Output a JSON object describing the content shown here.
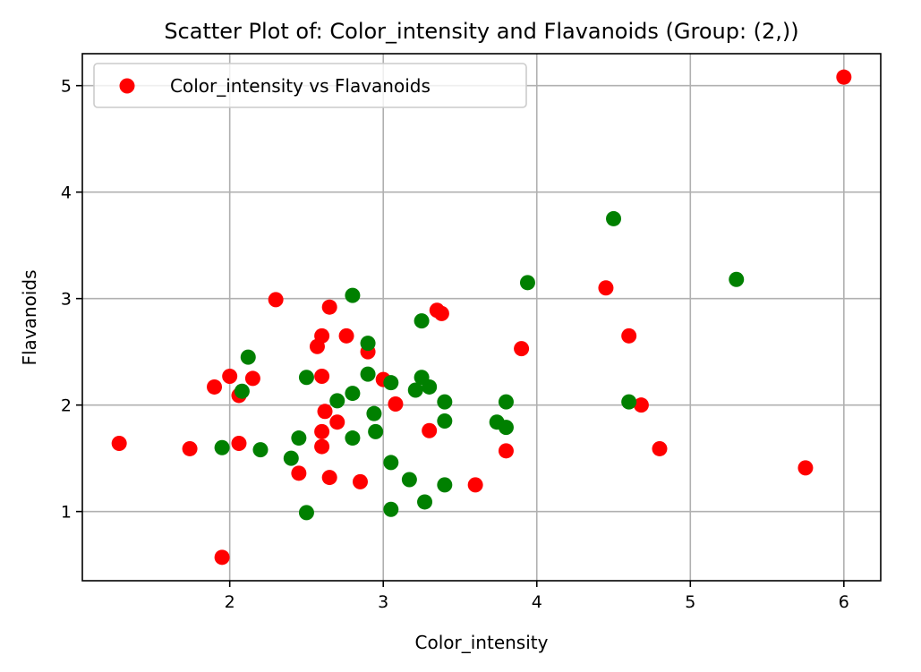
{
  "chart_data": {
    "type": "scatter",
    "title": "Scatter Plot of: Color_intensity and Flavanoids (Group: (2,))",
    "xlabel": "Color_intensity",
    "ylabel": "Flavanoids",
    "xlim": [
      1.04,
      6.24
    ],
    "ylim": [
      0.35,
      5.3
    ],
    "xticks": [
      2,
      3,
      4,
      5,
      6
    ],
    "yticks": [
      1,
      2,
      3,
      4,
      5
    ],
    "grid": true,
    "legend": {
      "position": "upper-left",
      "entries": [
        {
          "label": "Color_intensity vs Flavanoids",
          "color": "#ff0000"
        }
      ]
    },
    "colors": {
      "red": "#ff0000",
      "green": "#008000"
    },
    "series": [
      {
        "color": "#ff0000",
        "points": [
          {
            "x": 1.28,
            "y": 1.64
          },
          {
            "x": 1.74,
            "y": 1.59
          },
          {
            "x": 1.9,
            "y": 2.17
          },
          {
            "x": 1.95,
            "y": 0.57
          },
          {
            "x": 2.0,
            "y": 2.27
          },
          {
            "x": 2.06,
            "y": 2.09
          },
          {
            "x": 2.06,
            "y": 1.64
          },
          {
            "x": 2.15,
            "y": 2.25
          },
          {
            "x": 2.3,
            "y": 2.99
          },
          {
            "x": 2.45,
            "y": 1.36
          },
          {
            "x": 2.57,
            "y": 2.55
          },
          {
            "x": 2.6,
            "y": 2.65
          },
          {
            "x": 2.6,
            "y": 2.27
          },
          {
            "x": 2.6,
            "y": 1.75
          },
          {
            "x": 2.6,
            "y": 1.61
          },
          {
            "x": 2.62,
            "y": 1.94
          },
          {
            "x": 2.65,
            "y": 2.92
          },
          {
            "x": 2.65,
            "y": 1.32
          },
          {
            "x": 2.7,
            "y": 1.84
          },
          {
            "x": 2.76,
            "y": 2.65
          },
          {
            "x": 2.85,
            "y": 1.28
          },
          {
            "x": 2.9,
            "y": 2.5
          },
          {
            "x": 3.0,
            "y": 2.24
          },
          {
            "x": 3.08,
            "y": 2.01
          },
          {
            "x": 3.3,
            "y": 1.76
          },
          {
            "x": 3.35,
            "y": 2.89
          },
          {
            "x": 3.38,
            "y": 2.86
          },
          {
            "x": 3.6,
            "y": 1.25
          },
          {
            "x": 3.8,
            "y": 1.57
          },
          {
            "x": 3.9,
            "y": 2.53
          },
          {
            "x": 4.45,
            "y": 3.1
          },
          {
            "x": 4.6,
            "y": 2.65
          },
          {
            "x": 4.68,
            "y": 2.0
          },
          {
            "x": 4.8,
            "y": 1.59
          },
          {
            "x": 5.75,
            "y": 1.41
          },
          {
            "x": 6.0,
            "y": 5.08
          }
        ]
      },
      {
        "color": "#008000",
        "points": [
          {
            "x": 1.95,
            "y": 1.6
          },
          {
            "x": 2.08,
            "y": 2.13
          },
          {
            "x": 2.12,
            "y": 2.45
          },
          {
            "x": 2.2,
            "y": 1.58
          },
          {
            "x": 2.4,
            "y": 1.5
          },
          {
            "x": 2.45,
            "y": 1.69
          },
          {
            "x": 2.5,
            "y": 2.26
          },
          {
            "x": 2.5,
            "y": 0.99
          },
          {
            "x": 2.7,
            "y": 2.04
          },
          {
            "x": 2.8,
            "y": 3.03
          },
          {
            "x": 2.8,
            "y": 2.11
          },
          {
            "x": 2.8,
            "y": 1.69
          },
          {
            "x": 2.9,
            "y": 2.58
          },
          {
            "x": 2.9,
            "y": 2.29
          },
          {
            "x": 2.94,
            "y": 1.92
          },
          {
            "x": 2.95,
            "y": 1.75
          },
          {
            "x": 3.05,
            "y": 2.21
          },
          {
            "x": 3.05,
            "y": 1.46
          },
          {
            "x": 3.05,
            "y": 1.02
          },
          {
            "x": 3.17,
            "y": 1.3
          },
          {
            "x": 3.21,
            "y": 2.14
          },
          {
            "x": 3.25,
            "y": 2.79
          },
          {
            "x": 3.25,
            "y": 2.26
          },
          {
            "x": 3.27,
            "y": 1.09
          },
          {
            "x": 3.3,
            "y": 2.17
          },
          {
            "x": 3.4,
            "y": 2.03
          },
          {
            "x": 3.4,
            "y": 1.85
          },
          {
            "x": 3.4,
            "y": 1.25
          },
          {
            "x": 3.74,
            "y": 1.84
          },
          {
            "x": 3.8,
            "y": 2.03
          },
          {
            "x": 3.8,
            "y": 1.79
          },
          {
            "x": 3.94,
            "y": 3.15
          },
          {
            "x": 4.5,
            "y": 3.75
          },
          {
            "x": 4.6,
            "y": 2.03
          },
          {
            "x": 5.3,
            "y": 3.18
          }
        ]
      }
    ]
  }
}
